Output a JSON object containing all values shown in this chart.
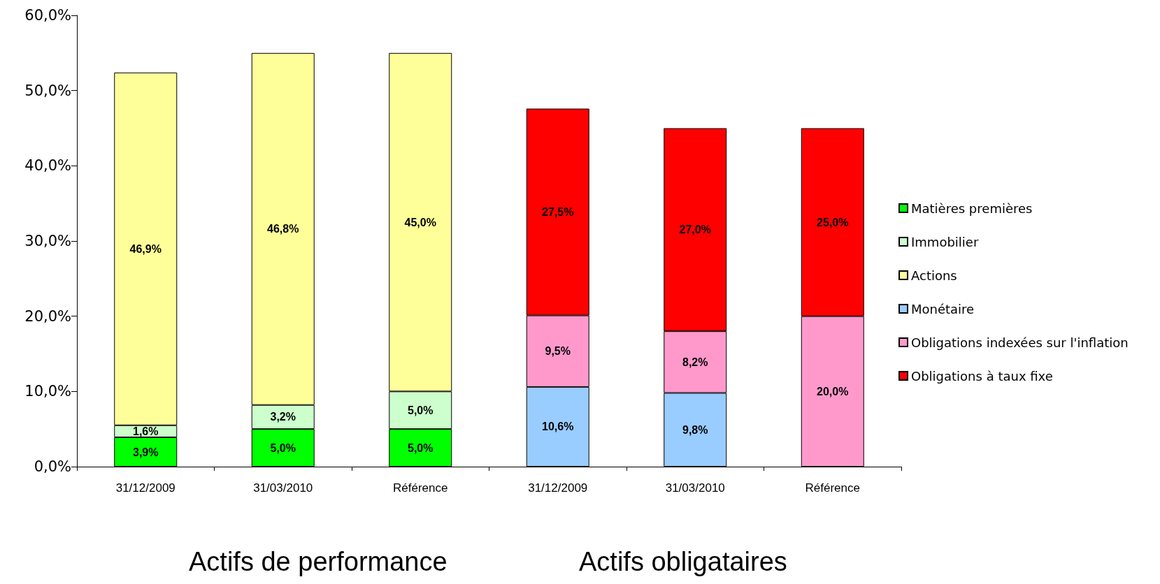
{
  "chart_data": {
    "type": "bar",
    "stacked": true,
    "categories": [
      "31/12/2009",
      "31/03/2010",
      "Référence",
      "31/12/2009",
      "31/03/2010",
      "Référence"
    ],
    "ylim": [
      0,
      60
    ],
    "yticks": [
      {
        "value": 0,
        "label": "0,0%"
      },
      {
        "value": 10,
        "label": "10,0%"
      },
      {
        "value": 20,
        "label": "20,0%"
      },
      {
        "value": 30,
        "label": "30,0%"
      },
      {
        "value": 40,
        "label": "40,0%"
      },
      {
        "value": 50,
        "label": "50,0%"
      },
      {
        "value": 60,
        "label": "60,0%"
      }
    ],
    "grid": false,
    "legend": "right",
    "series": [
      {
        "name": "Matières premières",
        "color": "#00ff00",
        "values": [
          3.9,
          5.0,
          5.0,
          null,
          null,
          null
        ],
        "value_labels": [
          "3,9%",
          "5,0%",
          "5,0%",
          null,
          null,
          null
        ]
      },
      {
        "name": "Immobilier",
        "color": "#ccffcc",
        "values": [
          1.6,
          3.2,
          5.0,
          null,
          null,
          null
        ],
        "value_labels": [
          "1,6%",
          "3,2%",
          "5,0%",
          null,
          null,
          null
        ]
      },
      {
        "name": "Actions",
        "color": "#ffff99",
        "values": [
          46.9,
          46.8,
          45.0,
          null,
          null,
          null
        ],
        "value_labels": [
          "46,9%",
          "46,8%",
          "45,0%",
          null,
          null,
          null
        ]
      },
      {
        "name": "Monétaire",
        "color": "#99ccff",
        "values": [
          null,
          null,
          null,
          10.6,
          9.8,
          null
        ],
        "value_labels": [
          null,
          null,
          null,
          "10,6%",
          "9,8%",
          null
        ]
      },
      {
        "name": "Obligations indexées sur l'inflation",
        "color": "#ff99cc",
        "values": [
          null,
          null,
          null,
          9.5,
          8.2,
          20.0
        ],
        "value_labels": [
          null,
          null,
          null,
          "9,5%",
          "8,2%",
          "20,0%"
        ]
      },
      {
        "name": "Obligations à taux fixe",
        "color": "#ff0000",
        "values": [
          null,
          null,
          null,
          27.5,
          27.0,
          25.0
        ],
        "value_labels": [
          null,
          null,
          null,
          "27,5%",
          "27,0%",
          "25,0%"
        ]
      }
    ],
    "annotations": [
      "Actifs de performance",
      "Actifs obligataires"
    ]
  }
}
